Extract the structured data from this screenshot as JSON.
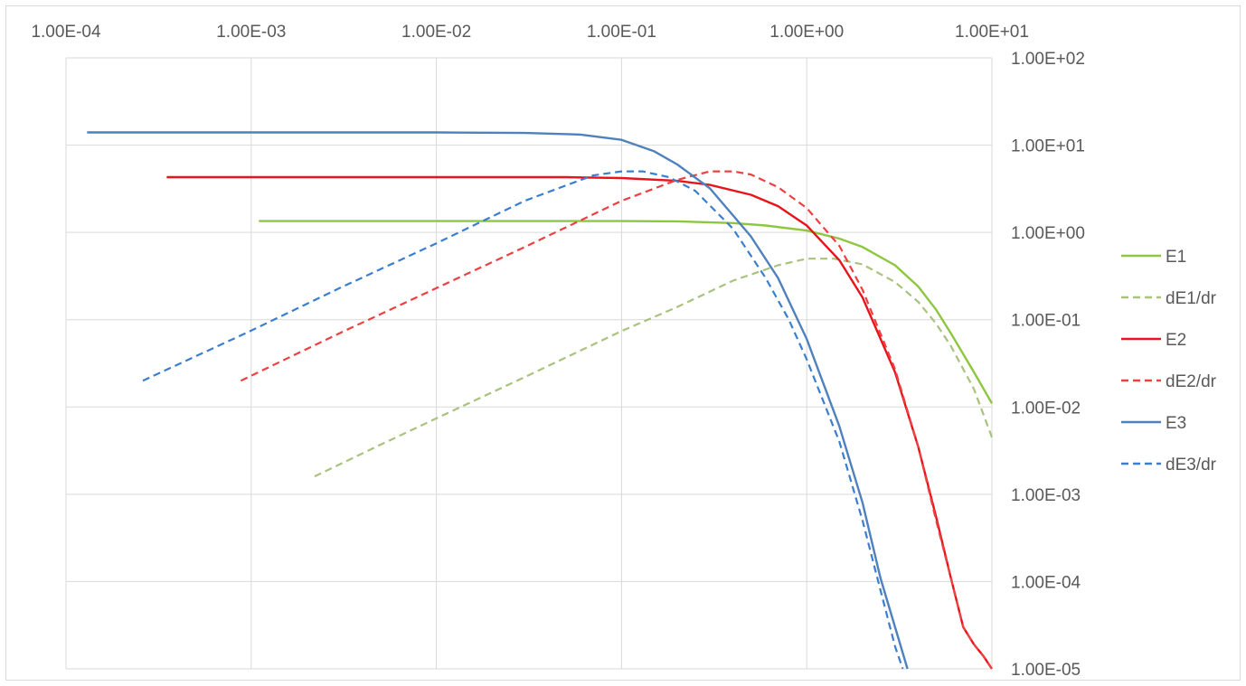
{
  "chart_data": {
    "type": "line",
    "x_scale": "log",
    "y_scale": "log",
    "xlim": [
      0.0001,
      10
    ],
    "ylim": [
      1e-05,
      100
    ],
    "x_ticks": [
      "1.00E-04",
      "1.00E-03",
      "1.00E-02",
      "1.00E-01",
      "1.00E+00",
      "1.00E+01"
    ],
    "y_ticks": [
      "1.00E+02",
      "1.00E+01",
      "1.00E+00",
      "1.00E-01",
      "1.00E-02",
      "1.00E-03",
      "1.00E-04",
      "1.00E-05"
    ],
    "x_axis_position": "top",
    "y_axis_position": "right",
    "grid": true,
    "legend": "right",
    "series": [
      {
        "name": "E1",
        "color": "#8dc63f",
        "dash": "solid",
        "x": [
          0.0011,
          0.01,
          0.05,
          0.1,
          0.2,
          0.4,
          0.6,
          1.0,
          1.5,
          2.0,
          3.0,
          4.0,
          5.0,
          6.0,
          8.0,
          10.0
        ],
        "y": [
          1.35,
          1.35,
          1.35,
          1.35,
          1.34,
          1.28,
          1.2,
          1.05,
          0.85,
          0.68,
          0.42,
          0.24,
          0.13,
          0.07,
          0.025,
          0.011
        ]
      },
      {
        "name": "dE1/dr",
        "color": "#a9c27d",
        "dash": "dashed",
        "x": [
          0.0022,
          0.005,
          0.01,
          0.03,
          0.1,
          0.2,
          0.4,
          0.7,
          1.0,
          1.4,
          2.0,
          3.0,
          4.0,
          5.0,
          6.0,
          8.0,
          10.0
        ],
        "y": [
          0.0016,
          0.0037,
          0.0074,
          0.022,
          0.074,
          0.14,
          0.28,
          0.42,
          0.5,
          0.5,
          0.43,
          0.27,
          0.16,
          0.09,
          0.05,
          0.016,
          0.0045
        ]
      },
      {
        "name": "E2",
        "color": "#e8141c",
        "dash": "solid",
        "x": [
          0.00035,
          0.01,
          0.05,
          0.1,
          0.2,
          0.3,
          0.5,
          0.7,
          1.0,
          1.5,
          2.0,
          3.0,
          4.0,
          5.0,
          6.0,
          7.0,
          8.0,
          9.0,
          10.0
        ],
        "y": [
          4.3,
          4.3,
          4.3,
          4.2,
          3.9,
          3.5,
          2.7,
          2.0,
          1.2,
          0.48,
          0.18,
          0.025,
          0.0035,
          0.00055,
          0.00011,
          3e-05,
          1.9e-05,
          1.4e-05,
          1e-05
        ]
      },
      {
        "name": "dE2/dr",
        "color": "#ee4040",
        "dash": "dashed",
        "x": [
          0.00088,
          0.003,
          0.01,
          0.03,
          0.1,
          0.2,
          0.3,
          0.4,
          0.5,
          0.7,
          1.0,
          1.5,
          2.0,
          3.0,
          4.0,
          5.0,
          6.0,
          7.0,
          8.0,
          9.0,
          10.0
        ],
        "y": [
          0.02,
          0.07,
          0.23,
          0.68,
          2.3,
          4.0,
          5.0,
          5.0,
          4.6,
          3.3,
          1.9,
          0.7,
          0.22,
          0.027,
          0.0035,
          0.0005,
          0.00011,
          3e-05,
          1.9e-05,
          1.4e-05,
          1e-05
        ]
      },
      {
        "name": "E3",
        "color": "#4f81bd",
        "dash": "solid",
        "x": [
          0.00013,
          0.001,
          0.01,
          0.03,
          0.06,
          0.1,
          0.15,
          0.2,
          0.3,
          0.5,
          0.7,
          1.0,
          1.5,
          2.0,
          2.5,
          3.0,
          3.5
        ],
        "y": [
          14,
          14,
          14,
          13.8,
          13.2,
          11.5,
          8.5,
          6.0,
          3.2,
          0.9,
          0.3,
          0.06,
          0.006,
          0.0008,
          0.00011,
          3e-05,
          1e-05
        ]
      },
      {
        "name": "dE3/dr",
        "color": "#3b7ed0",
        "dash": "dashed",
        "x": [
          0.00026,
          0.001,
          0.003,
          0.01,
          0.03,
          0.07,
          0.1,
          0.13,
          0.18,
          0.25,
          0.4,
          0.6,
          0.8,
          1.0,
          1.5,
          2.0,
          2.5,
          3.0,
          3.3
        ],
        "y": [
          0.02,
          0.075,
          0.23,
          0.75,
          2.3,
          4.5,
          5.0,
          5.0,
          4.3,
          3.0,
          1.1,
          0.3,
          0.1,
          0.035,
          0.004,
          0.0005,
          8e-05,
          1.8e-05,
          1e-05
        ]
      }
    ]
  }
}
